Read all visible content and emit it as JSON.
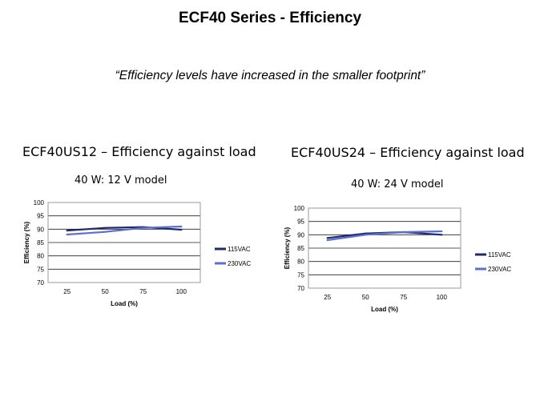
{
  "slide": {
    "title": "ECF40 Series - Efficiency",
    "quote": "“Efficiency levels have increased in the smaller footprint”"
  },
  "colors": {
    "series_115vac": "#1f2a6b",
    "series_230vac": "#5b6fd0",
    "plot_border": "#999999",
    "gridline": "#222222"
  },
  "chart_data": [
    {
      "type": "line",
      "heading": "ECF40US12 – Efficiency against load",
      "subtitle": "40 W: 12 V model",
      "xlabel": "Load (%)",
      "ylabel": "Efficiency (%)",
      "x": [
        25,
        50,
        75,
        100
      ],
      "x_ticks": [
        "25",
        "50",
        "75",
        "100"
      ],
      "ylim": [
        70,
        100
      ],
      "y_ticks": [
        "70",
        "75",
        "80",
        "85",
        "90",
        "95",
        "100"
      ],
      "grid": true,
      "legend_position": "right",
      "series": [
        {
          "name": "115VAC",
          "values": [
            89.5,
            90.5,
            90.8,
            89.8
          ]
        },
        {
          "name": "230VAC",
          "values": [
            88.0,
            89.0,
            90.5,
            91.0
          ]
        }
      ]
    },
    {
      "type": "line",
      "heading": "ECF40US24 – Efficiency against load",
      "subtitle": "40 W: 24 V model",
      "xlabel": "Load (%)",
      "ylabel": "Efficiency (%)",
      "x": [
        25,
        50,
        75,
        100
      ],
      "x_ticks": [
        "25",
        "50",
        "75",
        "100"
      ],
      "ylim": [
        70,
        100
      ],
      "y_ticks": [
        "70",
        "75",
        "80",
        "85",
        "90",
        "95",
        "100"
      ],
      "grid": true,
      "legend_position": "right",
      "series": [
        {
          "name": "115VAC",
          "values": [
            88.8,
            90.5,
            91.0,
            90.0
          ]
        },
        {
          "name": "230VAC",
          "values": [
            88.0,
            90.0,
            91.0,
            91.3
          ]
        }
      ]
    }
  ]
}
